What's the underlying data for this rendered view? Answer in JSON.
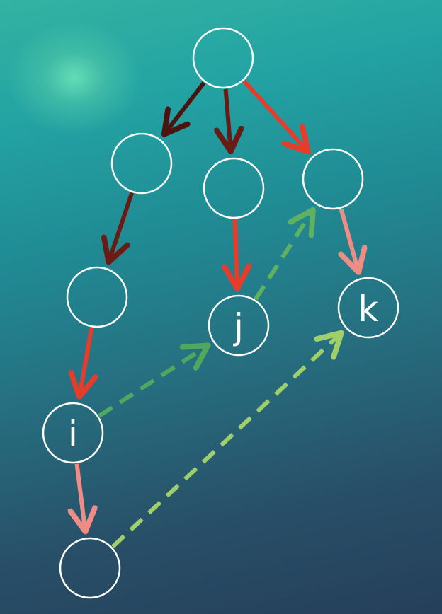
{
  "diagram": {
    "nodes": [
      {
        "id": "root",
        "label": ""
      },
      {
        "id": "a",
        "label": ""
      },
      {
        "id": "b",
        "label": ""
      },
      {
        "id": "c",
        "label": ""
      },
      {
        "id": "d",
        "label": ""
      },
      {
        "id": "j",
        "label": "j"
      },
      {
        "id": "k",
        "label": "k"
      },
      {
        "id": "i",
        "label": "i"
      },
      {
        "id": "e",
        "label": ""
      }
    ],
    "edges": [
      {
        "from": "root",
        "to": "a",
        "style": "solid",
        "color": "#4a1410"
      },
      {
        "from": "root",
        "to": "b",
        "style": "solid",
        "color": "#6a1c14"
      },
      {
        "from": "root",
        "to": "c",
        "style": "solid",
        "color": "#e53d2b"
      },
      {
        "from": "a",
        "to": "d",
        "style": "solid",
        "color": "#6a1c14"
      },
      {
        "from": "b",
        "to": "j",
        "style": "solid",
        "color": "#e53d2b"
      },
      {
        "from": "c",
        "to": "k",
        "style": "solid",
        "color": "#f08c86"
      },
      {
        "from": "d",
        "to": "i",
        "style": "solid",
        "color": "#e53d2b"
      },
      {
        "from": "i",
        "to": "e",
        "style": "solid",
        "color": "#f08c86"
      },
      {
        "from": "i",
        "to": "j",
        "style": "dashed",
        "color": "#4fa85e"
      },
      {
        "from": "j",
        "to": "c",
        "style": "dashed",
        "color": "#5fb060"
      },
      {
        "from": "e",
        "to": "k",
        "style": "dashed",
        "color": "#9fcf6a"
      }
    ],
    "colors": {
      "node_stroke": "#ffffff",
      "label": "#ffffff"
    }
  }
}
